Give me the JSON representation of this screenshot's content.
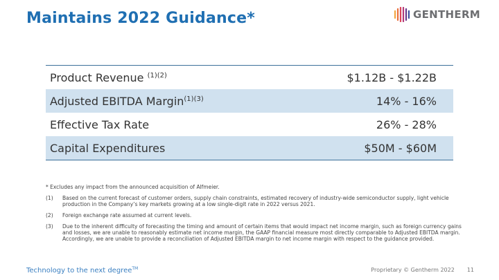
{
  "title": "Maintains 2022 Guidance*",
  "logo": {
    "text": "GENTHERM",
    "icon": "gentherm-logo-icon"
  },
  "table": {
    "rows": [
      {
        "label": "Product Revenue ",
        "sup": "(1)(2)",
        "value": "$1.12B - $1.22B"
      },
      {
        "label": "Adjusted EBITDA Margin",
        "sup": "(1)(3)",
        "value": "14% - 16%"
      },
      {
        "label": "Effective Tax Rate",
        "sup": "",
        "value": "26% - 28%"
      },
      {
        "label": "Capital Expenditures",
        "sup": "",
        "value": "$50M - $60M"
      }
    ]
  },
  "notes": {
    "star": "* Excludes any impact from the announced acquisition of Alfmeier.",
    "items": [
      {
        "num": "(1)",
        "text": "Based on the current forecast of customer orders, supply chain constraints, estimated recovery of industry-wide semiconductor supply, light vehicle production in the Company’s key markets growing at a low single-digit rate in 2022 versus 2021."
      },
      {
        "num": "(2)",
        "text": "Foreign exchange rate assumed at current levels."
      },
      {
        "num": "(3)",
        "text": "Due to the inherent difficulty of forecasting the timing and amount of certain items that would impact net income margin, such as foreign currency gains and losses, we are unable to reasonably estimate net income margin, the GAAP financial measure most directly comparable to Adjusted EBITDA margin. Accordingly, we are unable to provide a reconciliation of Adjusted EBITDA margin to net income margin with respect to the guidance provided."
      }
    ]
  },
  "footer": {
    "tagline": "Technology to the next degree",
    "tagline_tm": "TM",
    "proprietary": "Proprietary © Gentherm 2022",
    "page": "11"
  },
  "colors": {
    "title": "#1f6fb2",
    "row_shade": "#d0e1ef",
    "rule": "#3b6f99",
    "logo_warm": "#e8703a",
    "logo_purple": "#6b3a8e"
  }
}
